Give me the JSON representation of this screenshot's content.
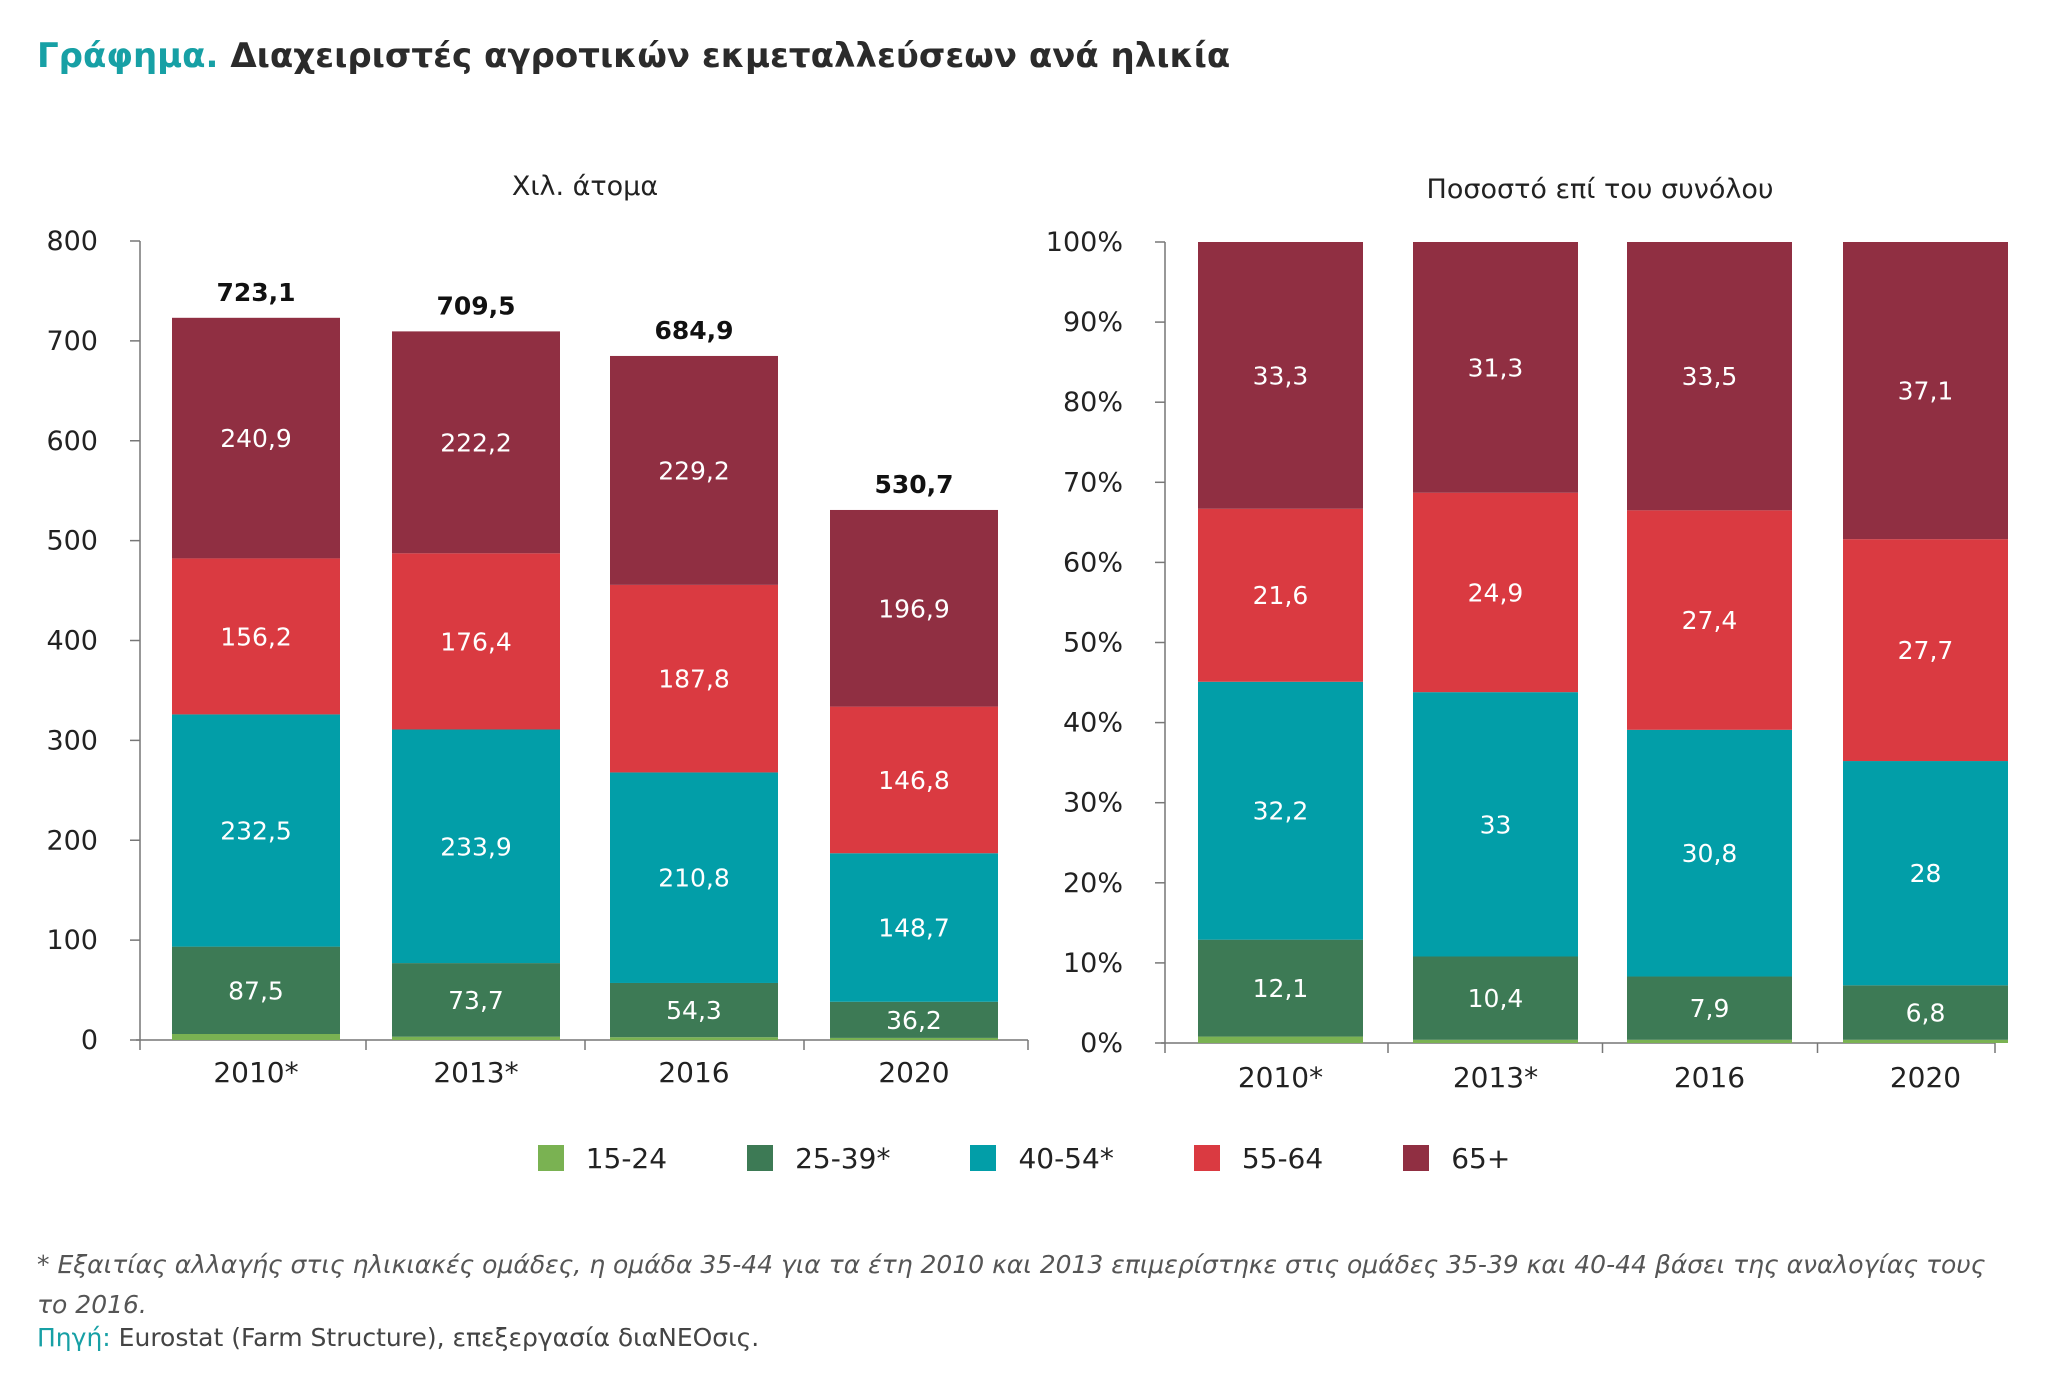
{
  "title": {
    "prefix": "Γράφημα.",
    "text": "Διαχειριστές αγροτικών εκμεταλλεύσεων ανά ηλικία"
  },
  "legend": [
    {
      "label": "15-24",
      "color": "#7ab252"
    },
    {
      "label": "25-39*",
      "color": "#3d7a55"
    },
    {
      "label": "40-54*",
      "color": "#029ea8"
    },
    {
      "label": "55-64",
      "color": "#da3a41"
    },
    {
      "label": "65+",
      "color": "#902f42"
    }
  ],
  "footnote": "* Εξαιτίας αλλαγής στις ηλικιακές ομάδες, η ομάδα 35-44 για τα έτη 2010 και 2013 επιμερίστηκε στις ομάδες 35-39 και 40-44 βάσει της αναλογίας τους το 2016.",
  "source": {
    "prefix": "Πηγή:",
    "text": "Eurostat (Farm Structure), επεξεργασία διαNEOσις."
  },
  "chart_data": [
    {
      "type": "bar",
      "stacked": true,
      "title": "Χιλ. άτομα",
      "categories": [
        "2010*",
        "2013*",
        "2016",
        "2020"
      ],
      "ylim": [
        0,
        800
      ],
      "yticks": [
        "0",
        "100",
        "200",
        "300",
        "400",
        "500",
        "600",
        "700",
        "800"
      ],
      "totals": [
        "723,1",
        "709,5",
        "684,9",
        "530,7"
      ],
      "series": [
        {
          "name": "15-24",
          "color": "#7ab252",
          "values": [
            6.0,
            3.3,
            2.8,
            2.1
          ],
          "labels": [
            "",
            "",
            "",
            ""
          ]
        },
        {
          "name": "25-39*",
          "color": "#3d7a55",
          "values": [
            87.5,
            73.7,
            54.3,
            36.2
          ],
          "labels": [
            "87,5",
            "73,7",
            "54,3",
            "36,2"
          ]
        },
        {
          "name": "40-54*",
          "color": "#029ea8",
          "values": [
            232.5,
            233.9,
            210.8,
            148.7
          ],
          "labels": [
            "232,5",
            "233,9",
            "210,8",
            "148,7"
          ]
        },
        {
          "name": "55-64",
          "color": "#da3a41",
          "values": [
            156.2,
            176.4,
            187.8,
            146.8
          ],
          "labels": [
            "156,2",
            "176,4",
            "187,8",
            "146,8"
          ]
        },
        {
          "name": "65+",
          "color": "#902f42",
          "values": [
            240.9,
            222.2,
            229.2,
            196.9
          ],
          "labels": [
            "240,9",
            "222,2",
            "229,2",
            "196,9"
          ]
        }
      ]
    },
    {
      "type": "bar",
      "stacked": true,
      "title": "Ποσοστό επί του συνόλου",
      "categories": [
        "2010*",
        "2013*",
        "2016",
        "2020"
      ],
      "ylim": [
        0,
        100
      ],
      "yticks": [
        "0%",
        "10%",
        "20%",
        "30%",
        "40%",
        "50%",
        "60%",
        "70%",
        "80%",
        "90%",
        "100%"
      ],
      "series": [
        {
          "name": "15-24",
          "color": "#7ab252",
          "values": [
            0.8,
            0.4,
            0.4,
            0.4
          ],
          "labels": [
            "",
            "",
            "",
            ""
          ]
        },
        {
          "name": "25-39*",
          "color": "#3d7a55",
          "values": [
            12.1,
            10.4,
            7.9,
            6.8
          ],
          "labels": [
            "12,1",
            "10,4",
            "7,9",
            "6,8"
          ]
        },
        {
          "name": "40-54*",
          "color": "#029ea8",
          "values": [
            32.2,
            33,
            30.8,
            28
          ],
          "labels": [
            "32,2",
            "33",
            "30,8",
            "28"
          ]
        },
        {
          "name": "55-64",
          "color": "#da3a41",
          "values": [
            21.6,
            24.9,
            27.4,
            27.7
          ],
          "labels": [
            "21,6",
            "24,9",
            "27,4",
            "27,7"
          ]
        },
        {
          "name": "65+",
          "color": "#902f42",
          "values": [
            33.3,
            31.3,
            33.5,
            37.1
          ],
          "labels": [
            "33,3",
            "31,3",
            "33,5",
            "37,1"
          ]
        }
      ]
    }
  ]
}
